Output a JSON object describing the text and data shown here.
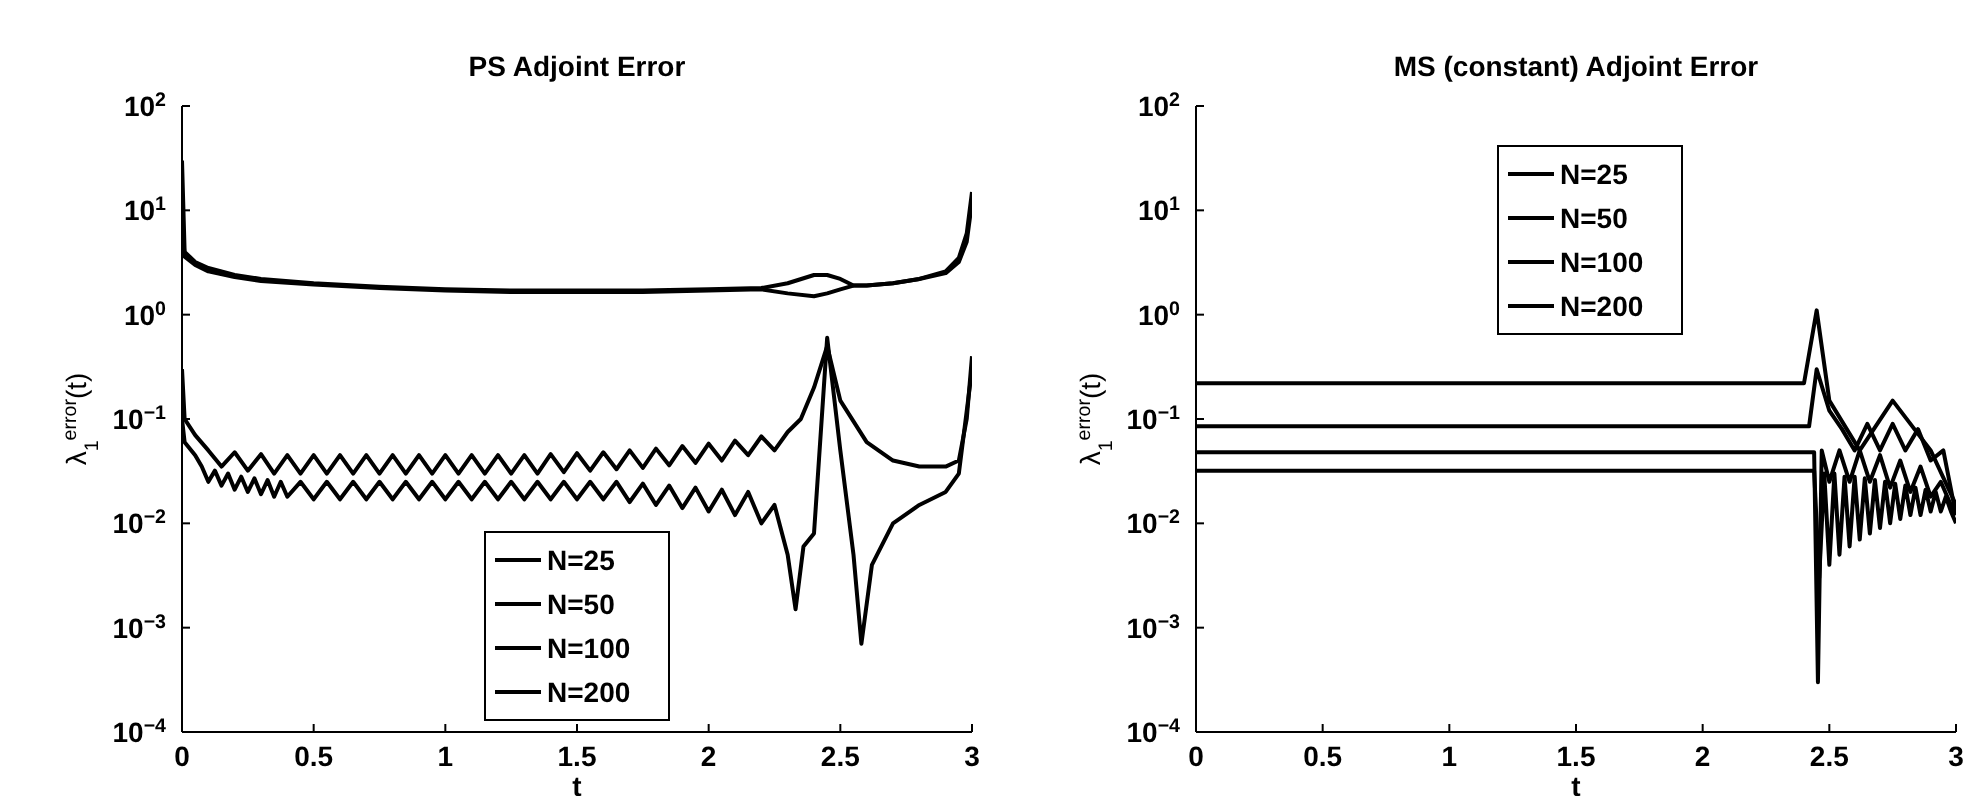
{
  "chart_data": [
    {
      "type": "line",
      "title": "PS Adjoint Error",
      "xlabel": "t",
      "ylabel": "λ$_{1}$$^{error}$(t)",
      "log": "y",
      "legend": "bottom",
      "xlim": [
        0,
        3
      ],
      "ylim": [
        0.0001,
        100
      ],
      "xticks": [
        0,
        0.5,
        1,
        1.5,
        2,
        2.5,
        3
      ],
      "yticks": [
        {
          "value": 0.0001,
          "label": "10$^{−4}$"
        },
        {
          "value": 0.001,
          "label": "10$^{−3}$"
        },
        {
          "value": 0.01,
          "label": "10$^{−2}$"
        },
        {
          "value": 0.1,
          "label": "10$^{−1}$"
        },
        {
          "value": 1,
          "label": "10$^{0}$"
        },
        {
          "value": 10,
          "label": "10$^{1}$"
        },
        {
          "value": 100,
          "label": "10$^{2}$"
        }
      ],
      "series": [
        {
          "name": "N=25",
          "color": "#000000",
          "x": [
            0,
            0.01,
            0.05,
            0.1,
            0.2,
            0.3,
            0.5,
            0.75,
            1,
            1.25,
            1.5,
            1.75,
            2,
            2.2,
            2.3,
            2.4,
            2.45,
            2.5,
            2.55,
            2.6,
            2.7,
            2.8,
            2.9,
            2.95,
            2.98,
            3
          ],
          "values": [
            30,
            4,
            3.2,
            2.8,
            2.4,
            2.2,
            2,
            1.85,
            1.75,
            1.7,
            1.7,
            1.7,
            1.75,
            1.8,
            2,
            2.4,
            2.4,
            2.2,
            1.9,
            1.9,
            2,
            2.2,
            2.6,
            3.5,
            6,
            15
          ]
        },
        {
          "name": "N=50",
          "color": "#000000",
          "x": [
            0,
            0.01,
            0.05,
            0.1,
            0.2,
            0.3,
            0.5,
            0.75,
            1,
            1.25,
            1.5,
            1.75,
            2,
            2.2,
            2.3,
            2.4,
            2.45,
            2.5,
            2.55,
            2.6,
            2.7,
            2.8,
            2.9,
            2.95,
            2.98,
            3
          ],
          "values": [
            8,
            3.6,
            3,
            2.6,
            2.3,
            2.1,
            1.95,
            1.8,
            1.7,
            1.65,
            1.65,
            1.65,
            1.7,
            1.75,
            1.6,
            1.5,
            1.6,
            1.75,
            1.9,
            1.9,
            2,
            2.2,
            2.5,
            3.2,
            5,
            12
          ]
        },
        {
          "name": "N=100",
          "color": "#000000",
          "x": [
            0,
            0.01,
            0.05,
            0.1,
            0.15,
            0.2,
            0.25,
            0.3,
            0.35,
            0.4,
            0.45,
            0.5,
            0.55,
            0.6,
            0.65,
            0.7,
            0.75,
            0.8,
            0.85,
            0.9,
            0.95,
            1,
            1.05,
            1.1,
            1.15,
            1.2,
            1.25,
            1.3,
            1.35,
            1.4,
            1.45,
            1.5,
            1.55,
            1.6,
            1.65,
            1.7,
            1.75,
            1.8,
            1.85,
            1.9,
            1.95,
            2,
            2.05,
            2.1,
            2.15,
            2.2,
            2.25,
            2.3,
            2.35,
            2.4,
            2.45,
            2.5,
            2.6,
            2.7,
            2.8,
            2.9,
            2.95,
            2.98,
            3
          ],
          "values": [
            0.3,
            0.1,
            0.07,
            0.05,
            0.035,
            0.048,
            0.032,
            0.046,
            0.03,
            0.045,
            0.03,
            0.045,
            0.03,
            0.045,
            0.03,
            0.045,
            0.03,
            0.045,
            0.03,
            0.045,
            0.03,
            0.045,
            0.03,
            0.045,
            0.03,
            0.045,
            0.03,
            0.045,
            0.03,
            0.046,
            0.031,
            0.047,
            0.032,
            0.048,
            0.033,
            0.05,
            0.034,
            0.052,
            0.036,
            0.055,
            0.038,
            0.058,
            0.04,
            0.062,
            0.045,
            0.068,
            0.05,
            0.075,
            0.1,
            0.2,
            0.5,
            0.15,
            0.06,
            0.04,
            0.035,
            0.035,
            0.04,
            0.1,
            0.4
          ]
        },
        {
          "name": "N=200",
          "color": "#000000",
          "x": [
            0,
            0.01,
            0.05,
            0.075,
            0.1,
            0.125,
            0.15,
            0.175,
            0.2,
            0.225,
            0.25,
            0.275,
            0.3,
            0.325,
            0.35,
            0.375,
            0.4,
            0.45,
            0.5,
            0.55,
            0.6,
            0.65,
            0.7,
            0.75,
            0.8,
            0.85,
            0.9,
            0.95,
            1,
            1.05,
            1.1,
            1.15,
            1.2,
            1.25,
            1.3,
            1.35,
            1.4,
            1.45,
            1.5,
            1.55,
            1.6,
            1.65,
            1.7,
            1.75,
            1.8,
            1.85,
            1.9,
            1.95,
            2,
            2.05,
            2.1,
            2.15,
            2.2,
            2.25,
            2.3,
            2.33,
            2.36,
            2.4,
            2.45,
            2.5,
            2.55,
            2.58,
            2.62,
            2.7,
            2.8,
            2.9,
            2.95,
            3
          ],
          "values": [
            0.1,
            0.06,
            0.045,
            0.035,
            0.025,
            0.032,
            0.023,
            0.03,
            0.021,
            0.028,
            0.02,
            0.027,
            0.019,
            0.026,
            0.018,
            0.025,
            0.018,
            0.025,
            0.017,
            0.025,
            0.017,
            0.025,
            0.017,
            0.025,
            0.017,
            0.025,
            0.017,
            0.025,
            0.017,
            0.025,
            0.017,
            0.025,
            0.017,
            0.025,
            0.017,
            0.025,
            0.017,
            0.025,
            0.017,
            0.025,
            0.017,
            0.025,
            0.016,
            0.024,
            0.015,
            0.023,
            0.014,
            0.022,
            0.013,
            0.021,
            0.012,
            0.02,
            0.01,
            0.015,
            0.005,
            0.0015,
            0.006,
            0.008,
            0.6,
            0.05,
            0.005,
            0.0007,
            0.004,
            0.01,
            0.015,
            0.02,
            0.03,
            0.3
          ]
        }
      ]
    },
    {
      "type": "line",
      "title": "MS (constant) Adjoint Error",
      "xlabel": "t",
      "ylabel": "λ$_{1}$$^{error}$(t)",
      "log": "y",
      "legend": "top",
      "xlim": [
        0,
        3
      ],
      "ylim": [
        0.0001,
        100
      ],
      "xticks": [
        0,
        0.5,
        1,
        1.5,
        2,
        2.5,
        3
      ],
      "yticks": [
        {
          "value": 0.0001,
          "label": "10$^{−4}$"
        },
        {
          "value": 0.001,
          "label": "10$^{−3}$"
        },
        {
          "value": 0.01,
          "label": "10$^{−2}$"
        },
        {
          "value": 0.1,
          "label": "10$^{−1}$"
        },
        {
          "value": 1,
          "label": "10$^{0}$"
        },
        {
          "value": 10,
          "label": "10$^{1}$"
        },
        {
          "value": 100,
          "label": "10$^{2}$"
        }
      ],
      "series": [
        {
          "name": "N=25",
          "color": "#000000",
          "x": [
            0,
            2.4,
            2.45,
            2.5,
            2.62,
            2.75,
            2.9,
            3
          ],
          "values": [
            0.22,
            0.22,
            1.1,
            0.15,
            0.05,
            0.15,
            0.05,
            0.015
          ]
        },
        {
          "name": "N=50",
          "color": "#000000",
          "x": [
            0,
            2.42,
            2.45,
            2.5,
            2.55,
            2.6,
            2.65,
            2.7,
            2.75,
            2.8,
            2.85,
            2.9,
            2.95,
            3
          ],
          "values": [
            0.085,
            0.085,
            0.3,
            0.12,
            0.08,
            0.05,
            0.09,
            0.05,
            0.09,
            0.05,
            0.08,
            0.04,
            0.05,
            0.012
          ]
        },
        {
          "name": "N=100",
          "color": "#000000",
          "x": [
            0,
            2.44,
            2.455,
            2.47,
            2.5,
            2.54,
            2.58,
            2.62,
            2.66,
            2.7,
            2.74,
            2.78,
            2.82,
            2.86,
            2.9,
            2.94,
            2.98,
            3
          ],
          "values": [
            0.048,
            0.048,
            0.0003,
            0.05,
            0.025,
            0.05,
            0.025,
            0.05,
            0.025,
            0.045,
            0.022,
            0.04,
            0.02,
            0.035,
            0.018,
            0.025,
            0.015,
            0.012
          ]
        },
        {
          "name": "N=200",
          "color": "#000000",
          "x": [
            0,
            2.44,
            2.46,
            2.48,
            2.5,
            2.52,
            2.54,
            2.56,
            2.58,
            2.6,
            2.62,
            2.64,
            2.66,
            2.68,
            2.7,
            2.72,
            2.74,
            2.76,
            2.78,
            2.8,
            2.82,
            2.84,
            2.86,
            2.88,
            2.9,
            2.92,
            2.94,
            2.96,
            2.98,
            3
          ],
          "values": [
            0.032,
            0.032,
            0.003,
            0.03,
            0.004,
            0.03,
            0.005,
            0.028,
            0.006,
            0.028,
            0.007,
            0.027,
            0.008,
            0.026,
            0.009,
            0.025,
            0.01,
            0.024,
            0.011,
            0.023,
            0.012,
            0.022,
            0.012,
            0.021,
            0.013,
            0.02,
            0.013,
            0.018,
            0.013,
            0.01
          ]
        }
      ]
    }
  ]
}
